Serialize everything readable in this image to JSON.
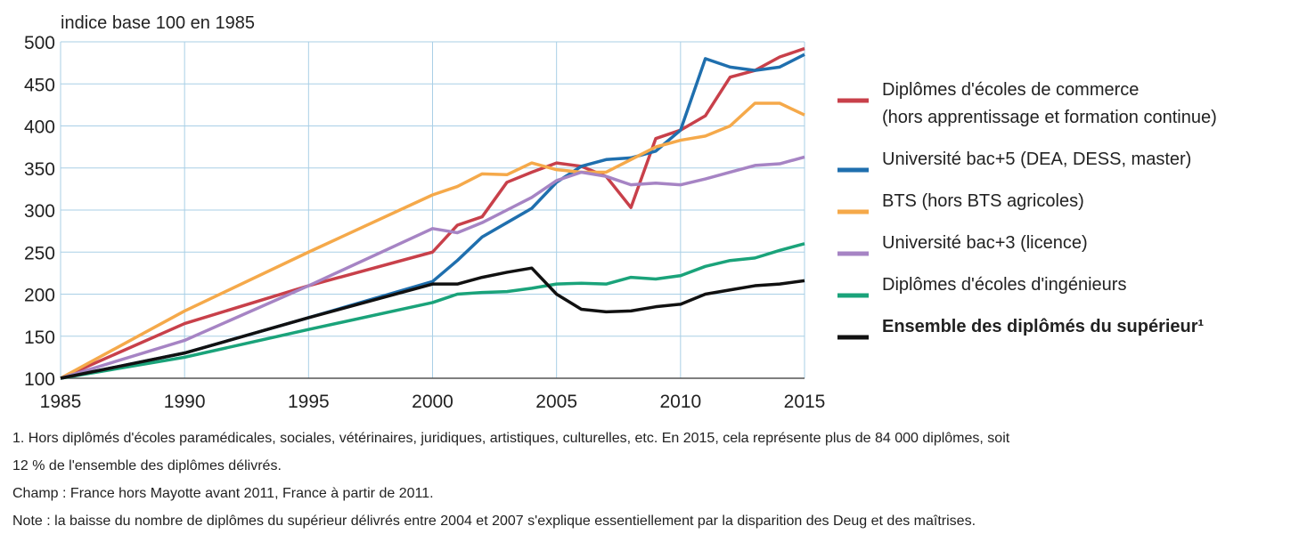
{
  "chart_data": {
    "type": "line",
    "y_axis_label": "indice base 100 en 1985",
    "x": [
      1985,
      1990,
      1995,
      2000,
      2001,
      2002,
      2003,
      2004,
      2005,
      2006,
      2007,
      2008,
      2009,
      2010,
      2011,
      2012,
      2013,
      2014,
      2015
    ],
    "xlim": [
      1985,
      2015
    ],
    "xticks": [
      1985,
      1990,
      1995,
      2000,
      2005,
      2010,
      2015
    ],
    "ylim": [
      100,
      500
    ],
    "yticks": [
      100,
      150,
      200,
      250,
      300,
      350,
      400,
      450,
      500
    ],
    "grid": true,
    "legend_position": "right",
    "series": [
      {
        "name": "Diplômes d'écoles de commerce (hors apprentissage et formation continue)",
        "color": "#c8404a",
        "values": [
          100,
          165,
          210,
          250,
          282,
          292,
          333,
          345,
          356,
          352,
          340,
          303,
          385,
          395,
          412,
          458,
          466,
          482,
          492
        ]
      },
      {
        "name": "Université bac+5 (DEA, DESS, master)",
        "color": "#1f6fae",
        "values": [
          100,
          130,
          172,
          215,
          240,
          268,
          285,
          302,
          333,
          352,
          360,
          362,
          370,
          395,
          480,
          470,
          466,
          470,
          485
        ]
      },
      {
        "name": "BTS (hors BTS agricoles)",
        "color": "#f5a94a",
        "values": [
          100,
          180,
          250,
          318,
          328,
          343,
          342,
          356,
          348,
          345,
          345,
          360,
          375,
          383,
          388,
          400,
          427,
          427,
          413
        ]
      },
      {
        "name": "Université bac+3 (licence)",
        "color": "#a684c4",
        "values": [
          100,
          145,
          210,
          278,
          273,
          285,
          300,
          315,
          335,
          345,
          340,
          330,
          332,
          330,
          337,
          345,
          353,
          355,
          363
        ]
      },
      {
        "name": "Diplômes d'écoles d'ingénieurs",
        "color": "#1aa37a",
        "values": [
          100,
          125,
          158,
          190,
          200,
          202,
          203,
          207,
          212,
          213,
          212,
          220,
          218,
          222,
          233,
          240,
          243,
          252,
          260
        ]
      },
      {
        "name": "Ensemble des diplômés du supérieur¹",
        "color": "#111111",
        "bold": true,
        "values": [
          100,
          130,
          172,
          212,
          212,
          220,
          226,
          231,
          200,
          182,
          179,
          180,
          185,
          188,
          200,
          205,
          210,
          212,
          216
        ]
      }
    ],
    "notes": [
      "1. Hors diplômés d'écoles paramédicales, sociales, vétérinaires, juridiques, artistiques, culturelles, etc. En 2015, cela représente plus de 84 000 diplômes, soit",
      "12 % de  l'ensemble des diplômes délivrés.",
      "Champ : France hors Mayotte avant 2011, France à partir de 2011.",
      "Note : la baisse du nombre de diplômes du supérieur délivrés entre 2004 et 2007 s'explique essentiellement par la disparition des Deug et des maîtrises."
    ]
  }
}
